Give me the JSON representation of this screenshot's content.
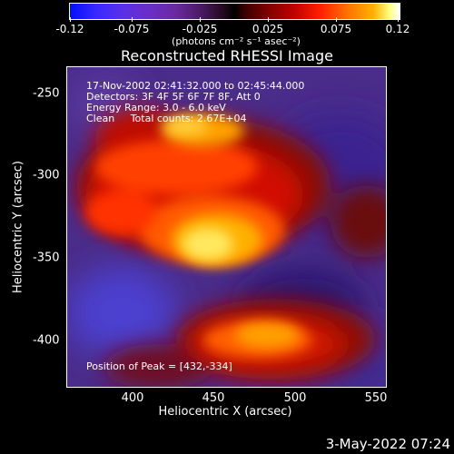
{
  "colorbar": {
    "ticks": [
      "-0.12",
      "-0.075",
      "-0.025",
      "0.025",
      "0.075",
      "0.12"
    ],
    "unit": "(photons cm⁻² s⁻¹ asec⁻²)",
    "range": [
      -0.12,
      0.12
    ]
  },
  "title": "Reconstructed RHESSI Image",
  "annotations": {
    "time": "17-Nov-2002 02:41:32.000 to 02:45:44.000",
    "detectors": "Detectors: 3F 4F 5F 6F 7F 8F, Att 0",
    "energy": "Energy Range: 3.0 - 6.0 keV",
    "clean": "Clean     Total counts: 2.67E+04",
    "peak": "Position of Peak = [432,-334]"
  },
  "axes": {
    "xlabel": "Heliocentric X (arcsec)",
    "ylabel": "Heliocentric Y (arcsec)",
    "xticks": [
      "400",
      "450",
      "500",
      "550"
    ],
    "yticks": [
      "-250",
      "-300",
      "-350",
      "-400"
    ]
  },
  "timestamp": "3-May-2022 07:24"
}
